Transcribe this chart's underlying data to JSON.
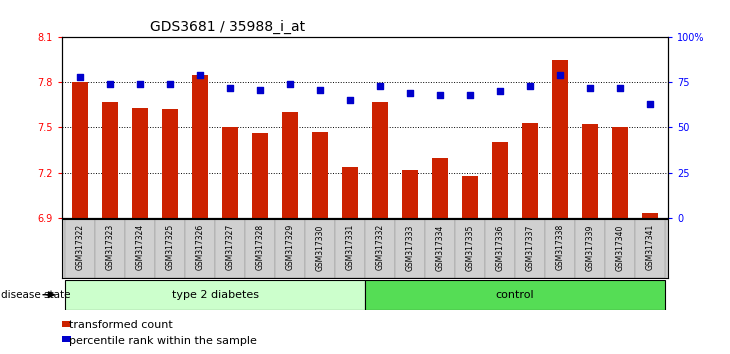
{
  "title": "GDS3681 / 35988_i_at",
  "samples": [
    "GSM317322",
    "GSM317323",
    "GSM317324",
    "GSM317325",
    "GSM317326",
    "GSM317327",
    "GSM317328",
    "GSM317329",
    "GSM317330",
    "GSM317331",
    "GSM317332",
    "GSM317333",
    "GSM317334",
    "GSM317335",
    "GSM317336",
    "GSM317337",
    "GSM317338",
    "GSM317339",
    "GSM317340",
    "GSM317341"
  ],
  "bar_values": [
    7.8,
    7.67,
    7.63,
    7.62,
    7.85,
    7.5,
    7.46,
    7.6,
    7.47,
    7.24,
    7.67,
    7.22,
    7.3,
    7.18,
    7.4,
    7.53,
    7.95,
    7.52,
    7.5,
    6.93
  ],
  "percentile_values": [
    78,
    74,
    74,
    74,
    79,
    72,
    71,
    74,
    71,
    65,
    73,
    69,
    68,
    68,
    70,
    73,
    79,
    72,
    72,
    63
  ],
  "group_labels": [
    "type 2 diabetes",
    "control"
  ],
  "group_n": [
    10,
    10
  ],
  "group_colors": [
    "#ccffcc",
    "#55dd55"
  ],
  "bar_color": "#cc2200",
  "percentile_color": "#0000cc",
  "ylim_left": [
    6.9,
    8.1
  ],
  "ylim_right": [
    0,
    100
  ],
  "yticks_left": [
    6.9,
    7.2,
    7.5,
    7.8,
    8.1
  ],
  "yticks_right": [
    0,
    25,
    50,
    75,
    100
  ],
  "ytick_labels_right": [
    "0",
    "25",
    "50",
    "75",
    "100%"
  ],
  "hlines": [
    7.2,
    7.5,
    7.8
  ],
  "legend_labels": [
    "transformed count",
    "percentile rank within the sample"
  ],
  "disease_state_label": "disease state",
  "background_color": "#ffffff",
  "title_fontsize": 10,
  "tick_fontsize": 7,
  "label_fontsize": 5.5,
  "group_fontsize": 8,
  "legend_fontsize": 8
}
